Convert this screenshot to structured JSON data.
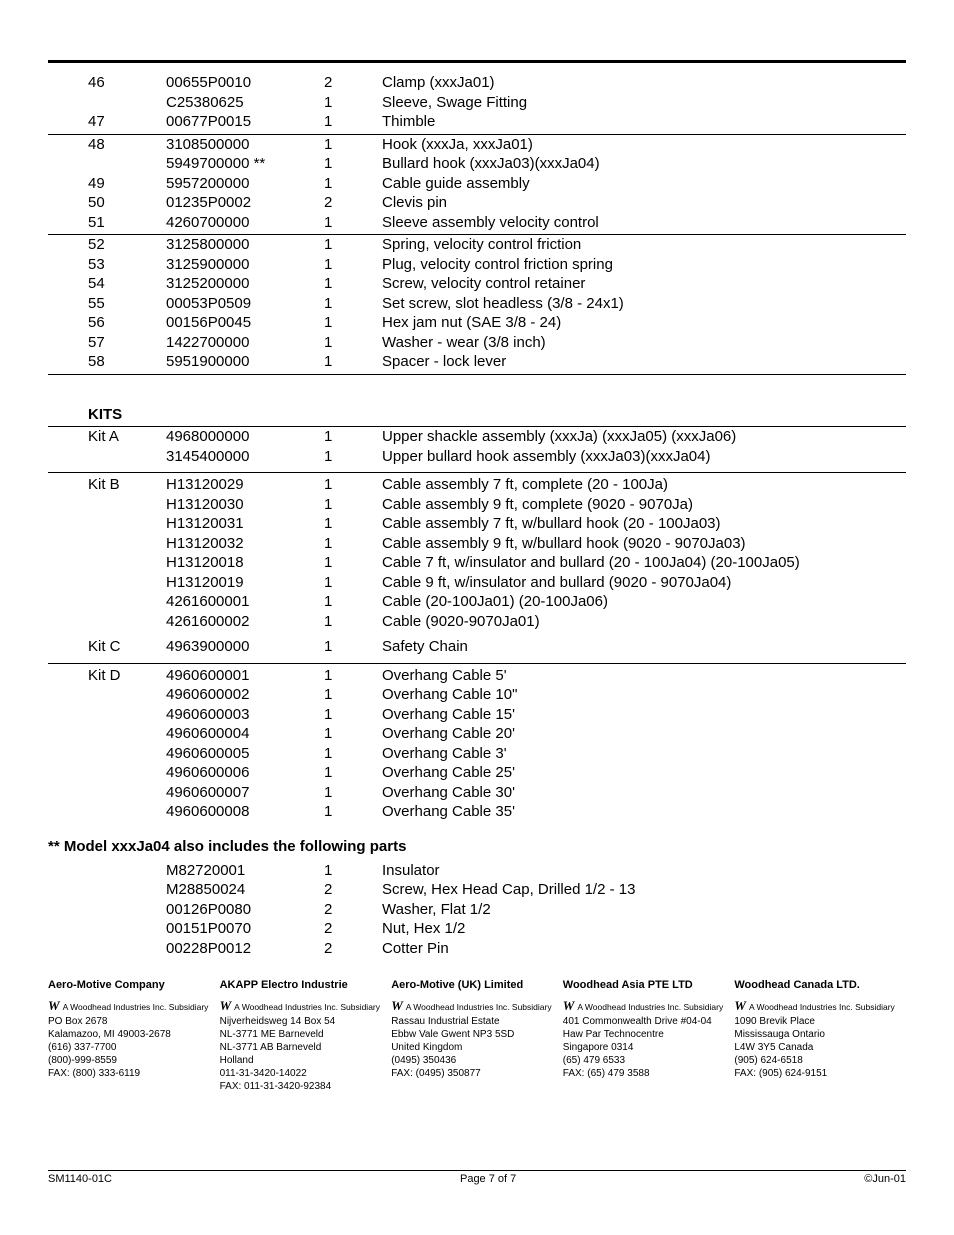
{
  "parts": [
    {
      "item": "46",
      "part": "00655P0010",
      "qty": "2",
      "desc": "Clamp (xxxJa01)",
      "rule": false
    },
    {
      "item": "",
      "part": "C25380625",
      "qty": "1",
      "desc": "Sleeve, Swage Fitting",
      "rule": false
    },
    {
      "item": "47",
      "part": "00677P0015",
      "qty": "1",
      "desc": "Thimble",
      "rule": true
    },
    {
      "item": "48",
      "part": "3108500000",
      "qty": "1",
      "desc": "Hook (xxxJa, xxxJa01)",
      "rule": false
    },
    {
      "item": "",
      "part": "5949700000 **",
      "qty": "1",
      "desc": "Bullard hook (xxxJa03)(xxxJa04)",
      "rule": false
    },
    {
      "item": "49",
      "part": "5957200000",
      "qty": "1",
      "desc": "Cable guide assembly",
      "rule": false
    },
    {
      "item": "50",
      "part": "01235P0002",
      "qty": "2",
      "desc": "Clevis pin",
      "rule": false
    },
    {
      "item": "51",
      "part": "4260700000",
      "qty": "1",
      "desc": "Sleeve assembly velocity control",
      "rule": true
    },
    {
      "item": "52",
      "part": "3125800000",
      "qty": "1",
      "desc": "Spring, velocity control friction",
      "rule": false
    },
    {
      "item": "53",
      "part": "3125900000",
      "qty": "1",
      "desc": "Plug, velocity control friction spring",
      "rule": false
    },
    {
      "item": "54",
      "part": "3125200000",
      "qty": "1",
      "desc": "Screw, velocity control retainer",
      "rule": false
    },
    {
      "item": "55",
      "part": "00053P0509",
      "qty": "1",
      "desc": "Set screw, slot headless (3/8 - 24x1)",
      "rule": false
    },
    {
      "item": "56",
      "part": "00156P0045",
      "qty": "1",
      "desc": "Hex jam nut (SAE 3/8 - 24)",
      "rule": false
    },
    {
      "item": "57",
      "part": "1422700000",
      "qty": "1",
      "desc": "Washer - wear (3/8 inch)",
      "rule": false
    },
    {
      "item": "58",
      "part": "5951900000",
      "qty": "1",
      "desc": "Spacer - lock lever",
      "rule": true
    }
  ],
  "kits_label": "KITS",
  "kitA": {
    "label": "Kit A",
    "rows": [
      {
        "part": "4968000000",
        "qty": "1",
        "desc": "Upper shackle assembly (xxxJa) (xxxJa05) (xxxJa06)"
      },
      {
        "part": "3145400000",
        "qty": "1",
        "desc": "Upper bullard hook assembly (xxxJa03)(xxxJa04)"
      }
    ]
  },
  "kitB": {
    "label": "Kit B",
    "rows": [
      {
        "part": "H13120029",
        "qty": "1",
        "desc": "Cable assembly 7 ft, complete (20 - 100Ja)"
      },
      {
        "part": "H13120030",
        "qty": "1",
        "desc": "Cable assembly 9 ft, complete (9020 - 9070Ja)"
      },
      {
        "part": "H13120031",
        "qty": "1",
        "desc": "Cable assembly 7 ft, w/bullard hook (20 - 100Ja03)"
      },
      {
        "part": "H13120032",
        "qty": "1",
        "desc": "Cable assembly 9 ft, w/bullard hook (9020 - 9070Ja03)"
      },
      {
        "part": "H13120018",
        "qty": "1",
        "desc": "Cable 7 ft, w/insulator and bullard (20 - 100Ja04) (20-100Ja05)"
      },
      {
        "part": "H13120019",
        "qty": "1",
        "desc": "Cable 9 ft, w/insulator and bullard (9020 - 9070Ja04)"
      },
      {
        "part": "4261600001",
        "qty": "1",
        "desc": "Cable (20-100Ja01) (20-100Ja06)"
      },
      {
        "part": "4261600002",
        "qty": "1",
        "desc": "Cable (9020-9070Ja01)"
      }
    ]
  },
  "kitC": {
    "label": "Kit C",
    "rows": [
      {
        "part": "4963900000",
        "qty": "1",
        "desc": "Safety Chain"
      }
    ]
  },
  "kitD": {
    "label": "Kit D",
    "rows": [
      {
        "part": "4960600001",
        "qty": "1",
        "desc": "Overhang Cable 5'"
      },
      {
        "part": "4960600002",
        "qty": "1",
        "desc": "Overhang Cable 10\""
      },
      {
        "part": "4960600003",
        "qty": "1",
        "desc": "Overhang Cable 15'"
      },
      {
        "part": "4960600004",
        "qty": "1",
        "desc": "Overhang Cable 20'"
      },
      {
        "part": "4960600005",
        "qty": "1",
        "desc": "Overhang Cable 3'"
      },
      {
        "part": "4960600006",
        "qty": "1",
        "desc": "Overhang Cable 25'"
      },
      {
        "part": "4960600007",
        "qty": "1",
        "desc": "Overhang Cable 30'"
      },
      {
        "part": "4960600008",
        "qty": "1",
        "desc": "Overhang Cable 35'"
      }
    ]
  },
  "note_text": "**    Model xxxJa04 also includes the following parts",
  "extra": [
    {
      "part": "M82720001",
      "qty": "1",
      "desc": "Insulator"
    },
    {
      "part": "M28850024",
      "qty": "2",
      "desc": "Screw, Hex Head Cap, Drilled 1/2 - 13"
    },
    {
      "part": "00126P0080",
      "qty": "2",
      "desc": "Washer, Flat 1/2"
    },
    {
      "part": "00151P0070",
      "qty": "2",
      "desc": "Nut, Hex 1/2"
    },
    {
      "part": "00228P0012",
      "qty": "2",
      "desc": "Cotter Pin"
    }
  ],
  "companies": [
    {
      "name": "Aero-Motive Company",
      "sub": "A Woodhead Industries Inc. Subsidiary",
      "lines": [
        "PO Box 2678",
        "Kalamazoo, MI 49003-2678",
        "(616) 337-7700",
        "(800)-999-8559",
        "FAX: (800) 333-6119"
      ]
    },
    {
      "name": "AKAPP Electro Industrie",
      "sub": "A Woodhead Industries Inc. Subsidiary",
      "lines": [
        "Nijverheidsweg 14 Box 54",
        "NL-3771 ME Barneveld",
        "NL-3771 AB Barneveld",
        "Holland",
        "011-31-3420-14022",
        "FAX: 011-31-3420-92384"
      ]
    },
    {
      "name": "Aero-Motive (UK) Limited",
      "sub": "A Woodhead Industries Inc. Subsidiary",
      "lines": [
        "Rassau Industrial Estate",
        "Ebbw  Vale Gwent NP3 5SD",
        "United Kingdom",
        "(0495) 350436",
        "FAX: (0495) 350877"
      ]
    },
    {
      "name": "Woodhead Asia PTE LTD",
      "sub": "A Woodhead Industries Inc. Subsidiary",
      "lines": [
        "401 Commonwealth Drive #04-04",
        "Haw Par Technocentre",
        "Singapore 0314",
        "(65) 479 6533",
        "FAX: (65) 479 3588"
      ]
    },
    {
      "name": "Woodhead Canada LTD.",
      "sub": "A Woodhead Industries Inc. Subsidiary",
      "lines": [
        "1090 Brevik Place",
        "Mississauga Ontario",
        "L4W 3Y5 Canada",
        "(905) 624-6518",
        "FAX: (905) 624-9151"
      ]
    }
  ],
  "footer_left": "SM1140-01C",
  "footer_center": "Page 7 of 7",
  "footer_right": "©Jun-01"
}
